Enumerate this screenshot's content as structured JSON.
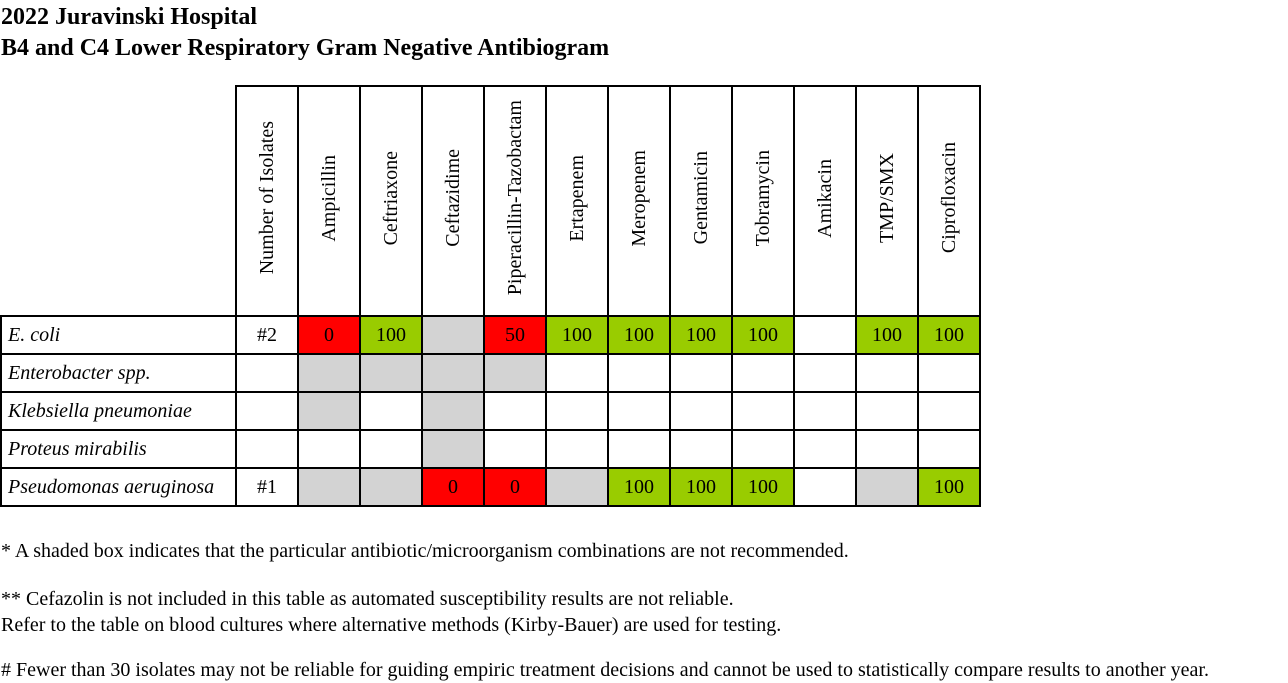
{
  "title": {
    "line1": "2022 Juravinski Hospital",
    "line2": "B4 and C4 Lower Respiratory Gram Negative Antibiogram"
  },
  "colors": {
    "susceptible": "#99cc00",
    "resistant": "#ff0000",
    "not_recommended": "#d3d3d3",
    "empty": "#ffffff"
  },
  "table": {
    "columns": [
      "Number of Isolates",
      "Ampicillin",
      "Ceftriaxone",
      "Ceftazidime",
      "Piperacillin-Tazobactam",
      "Ertapenem",
      "Meropenem",
      "Gentamicin",
      "Tobramycin",
      "Amikacin",
      "TMP/SMX",
      "Ciprofloxacin"
    ],
    "rows": [
      {
        "organism": "E. coli",
        "cells": [
          {
            "text": "#2",
            "fill": "empty"
          },
          {
            "text": "0",
            "fill": "resistant"
          },
          {
            "text": "100",
            "fill": "susceptible"
          },
          {
            "text": "",
            "fill": "not_recommended"
          },
          {
            "text": "50",
            "fill": "resistant"
          },
          {
            "text": "100",
            "fill": "susceptible"
          },
          {
            "text": "100",
            "fill": "susceptible"
          },
          {
            "text": "100",
            "fill": "susceptible"
          },
          {
            "text": "100",
            "fill": "susceptible"
          },
          {
            "text": "",
            "fill": "empty"
          },
          {
            "text": "100",
            "fill": "susceptible"
          },
          {
            "text": "100",
            "fill": "susceptible"
          }
        ]
      },
      {
        "organism": "Enterobacter spp.",
        "cells": [
          {
            "text": "",
            "fill": "empty"
          },
          {
            "text": "",
            "fill": "not_recommended"
          },
          {
            "text": "",
            "fill": "not_recommended"
          },
          {
            "text": "",
            "fill": "not_recommended"
          },
          {
            "text": "",
            "fill": "not_recommended"
          },
          {
            "text": "",
            "fill": "empty"
          },
          {
            "text": "",
            "fill": "empty"
          },
          {
            "text": "",
            "fill": "empty"
          },
          {
            "text": "",
            "fill": "empty"
          },
          {
            "text": "",
            "fill": "empty"
          },
          {
            "text": "",
            "fill": "empty"
          },
          {
            "text": "",
            "fill": "empty"
          }
        ]
      },
      {
        "organism": "Klebsiella pneumoniae",
        "cells": [
          {
            "text": "",
            "fill": "empty"
          },
          {
            "text": "",
            "fill": "not_recommended"
          },
          {
            "text": "",
            "fill": "empty"
          },
          {
            "text": "",
            "fill": "not_recommended"
          },
          {
            "text": "",
            "fill": "empty"
          },
          {
            "text": "",
            "fill": "empty"
          },
          {
            "text": "",
            "fill": "empty"
          },
          {
            "text": "",
            "fill": "empty"
          },
          {
            "text": "",
            "fill": "empty"
          },
          {
            "text": "",
            "fill": "empty"
          },
          {
            "text": "",
            "fill": "empty"
          },
          {
            "text": "",
            "fill": "empty"
          }
        ]
      },
      {
        "organism": "Proteus mirabilis",
        "cells": [
          {
            "text": "",
            "fill": "empty"
          },
          {
            "text": "",
            "fill": "empty"
          },
          {
            "text": "",
            "fill": "empty"
          },
          {
            "text": "",
            "fill": "not_recommended"
          },
          {
            "text": "",
            "fill": "empty"
          },
          {
            "text": "",
            "fill": "empty"
          },
          {
            "text": "",
            "fill": "empty"
          },
          {
            "text": "",
            "fill": "empty"
          },
          {
            "text": "",
            "fill": "empty"
          },
          {
            "text": "",
            "fill": "empty"
          },
          {
            "text": "",
            "fill": "empty"
          },
          {
            "text": "",
            "fill": "empty"
          }
        ]
      },
      {
        "organism": "Pseudomonas aeruginosa",
        "cells": [
          {
            "text": "#1",
            "fill": "empty"
          },
          {
            "text": "",
            "fill": "not_recommended"
          },
          {
            "text": "",
            "fill": "not_recommended"
          },
          {
            "text": "0",
            "fill": "resistant"
          },
          {
            "text": "0",
            "fill": "resistant"
          },
          {
            "text": "",
            "fill": "not_recommended"
          },
          {
            "text": "100",
            "fill": "susceptible"
          },
          {
            "text": "100",
            "fill": "susceptible"
          },
          {
            "text": "100",
            "fill": "susceptible"
          },
          {
            "text": "",
            "fill": "empty"
          },
          {
            "text": "",
            "fill": "not_recommended"
          },
          {
            "text": "100",
            "fill": "susceptible"
          }
        ]
      }
    ]
  },
  "notes": {
    "note1": "* A shaded box indicates that the particular antibiotic/microorganism combinations are not recommended.",
    "note2": "** Cefazolin is not included in this table as automated susceptibility results are not reliable.",
    "note3": "Refer to the table on blood cultures where alternative methods (Kirby-Bauer) are used for testing.",
    "note4": "# Fewer than 30 isolates may not be reliable for guiding empiric treatment decisions and cannot be used to statistically compare results to another year."
  }
}
